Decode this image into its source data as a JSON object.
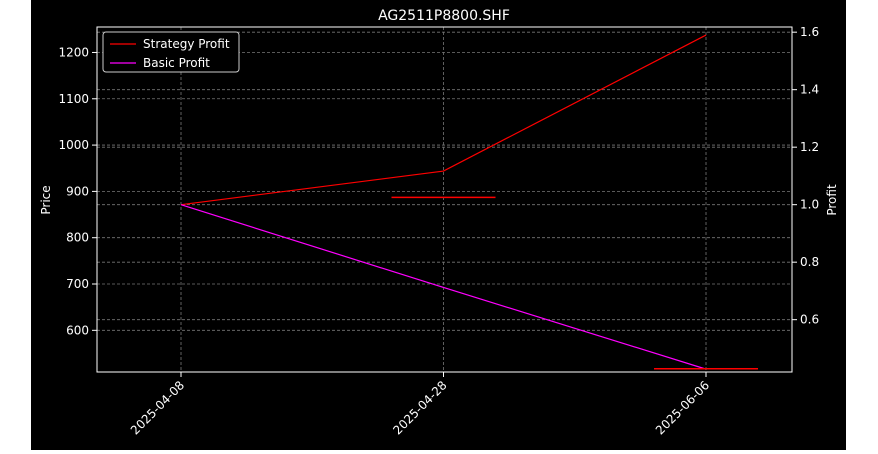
{
  "chart_data": {
    "type": "line",
    "title": "AG2511P8800.SHF",
    "xlabel": "",
    "ylabel_left": "Price",
    "ylabel_right": "Profit",
    "x_categories": [
      "2025-04-08",
      "2025-04-28",
      "2025-06-06"
    ],
    "y_left": {
      "ticks": [
        600,
        700,
        800,
        900,
        1000,
        1100,
        1200
      ],
      "ylim": [
        510,
        1255
      ]
    },
    "y_right": {
      "ticks": [
        0.6,
        0.8,
        1.0,
        1.2,
        1.4,
        1.6
      ],
      "ylim": [
        0.418,
        1.618
      ]
    },
    "grid": true,
    "legend": {
      "placement": "top-left",
      "entries": [
        "Strategy Profit",
        "Basic Profit"
      ]
    },
    "price_markers": [
      {
        "category": "2025-04-28",
        "price": 887
      },
      {
        "category": "2025-06-06",
        "price": 517
      }
    ],
    "series": [
      {
        "name": "Strategy Profit",
        "axis": "right",
        "color": "#ff0000",
        "values": [
          1.0,
          1.117,
          1.59
        ]
      },
      {
        "name": "Basic Profit",
        "axis": "right",
        "color": "#ff00ff",
        "values": [
          1.0,
          0.712,
          0.428
        ]
      }
    ]
  }
}
